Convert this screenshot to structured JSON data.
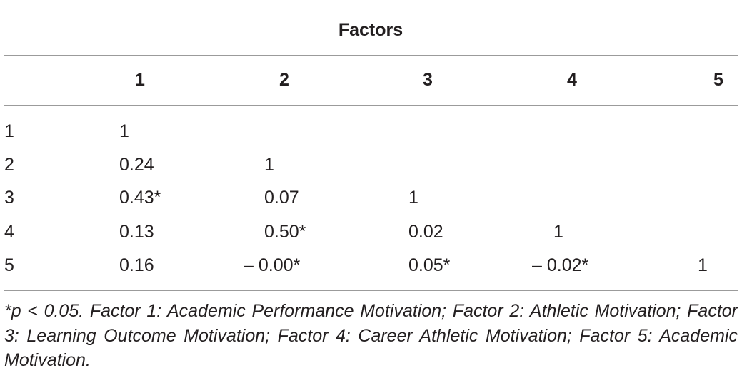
{
  "table": {
    "group_header": "Factors",
    "column_headers": [
      "1",
      "2",
      "3",
      "4",
      "5"
    ],
    "rows": [
      {
        "label": "1",
        "cells": [
          "1",
          "",
          "",
          "",
          ""
        ]
      },
      {
        "label": "2",
        "cells": [
          "0.24",
          "1",
          "",
          "",
          ""
        ]
      },
      {
        "label": "3",
        "cells": [
          "0.43*",
          "0.07",
          "1",
          "",
          ""
        ]
      },
      {
        "label": "4",
        "cells": [
          "0.13",
          "0.50*",
          "0.02",
          "1",
          ""
        ]
      },
      {
        "label": "5",
        "cells": [
          "0.16",
          "– 0.00*",
          "0.05*",
          "– 0.02*",
          "1"
        ]
      }
    ]
  },
  "footnote": "*p < 0.05. Factor 1: Academic Performance Motivation; Factor 2: Athletic Motivation; Factor 3: Learning Outcome Motivation; Factor 4: Career Athletic Motivation; Factor 5: Academic Motivation."
}
